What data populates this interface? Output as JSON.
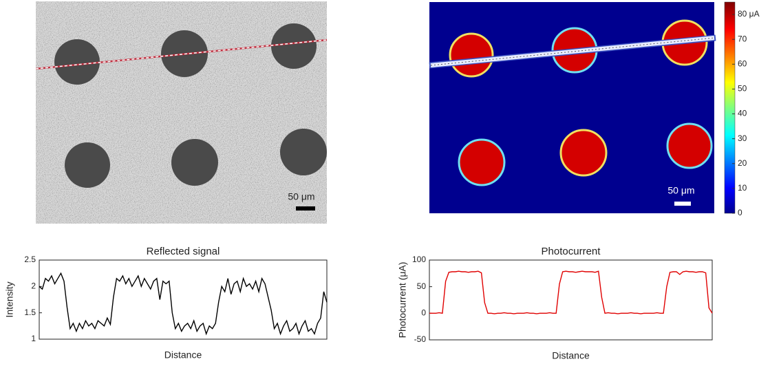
{
  "chart_data": [
    {
      "type": "line",
      "title": "Reflected signal",
      "x_label": "Distance",
      "y_label": "Intensity",
      "color": "#000000",
      "ylim": [
        1,
        2.5
      ],
      "yticks": [
        1,
        1.5,
        2,
        2.5
      ],
      "values": [
        2.0,
        1.95,
        2.15,
        2.1,
        2.2,
        2.05,
        2.15,
        2.25,
        2.1,
        1.6,
        1.2,
        1.3,
        1.15,
        1.3,
        1.2,
        1.35,
        1.25,
        1.3,
        1.2,
        1.35,
        1.3,
        1.25,
        1.4,
        1.28,
        1.8,
        2.15,
        2.1,
        2.2,
        2.05,
        2.15,
        2.0,
        2.1,
        2.2,
        2.0,
        2.15,
        2.05,
        1.95,
        2.1,
        2.15,
        1.75,
        2.1,
        2.05,
        2.1,
        1.5,
        1.2,
        1.3,
        1.15,
        1.25,
        1.3,
        1.2,
        1.35,
        1.15,
        1.25,
        1.3,
        1.1,
        1.25,
        1.2,
        1.3,
        1.7,
        2.0,
        1.9,
        2.15,
        1.85,
        2.05,
        2.1,
        1.9,
        2.15,
        2.0,
        2.05,
        1.95,
        2.1,
        1.9,
        2.15,
        2.05,
        1.8,
        1.55,
        1.2,
        1.3,
        1.1,
        1.25,
        1.35,
        1.15,
        1.2,
        1.3,
        1.1,
        1.25,
        1.35,
        1.15,
        1.2,
        1.1,
        1.3,
        1.4,
        1.9,
        1.7
      ]
    },
    {
      "type": "line",
      "title": "Photocurrent",
      "x_label": "Distance",
      "y_label": "Photocurrent (μA)",
      "color": "#e00000",
      "ylim": [
        -50,
        100
      ],
      "yticks": [
        -50,
        0,
        50,
        100
      ],
      "values": [
        0,
        0,
        0,
        1,
        0,
        60,
        77,
        78,
        78,
        79,
        78,
        78,
        77,
        78,
        78,
        79,
        76,
        20,
        0,
        0,
        -1,
        0,
        0,
        1,
        0,
        0,
        -1,
        0,
        0,
        0,
        1,
        0,
        0,
        -1,
        0,
        0,
        0,
        1,
        0,
        0,
        55,
        78,
        79,
        78,
        78,
        77,
        78,
        79,
        78,
        78,
        78,
        77,
        79,
        30,
        0,
        1,
        0,
        0,
        -1,
        0,
        0,
        0,
        1,
        0,
        0,
        -1,
        0,
        0,
        0,
        0,
        1,
        0,
        0,
        50,
        77,
        78,
        78,
        73,
        78,
        79,
        78,
        78,
        77,
        78,
        78,
        76,
        10,
        0
      ]
    }
  ],
  "micrographs": [
    {
      "scale_bar": "50 μm"
    },
    {
      "scale_bar": "50 μm",
      "colorbar": {
        "lim": [
          0,
          85
        ],
        "ticks": [
          0,
          10,
          20,
          30,
          40,
          50,
          60,
          70,
          {
            "value": 80,
            "label": "80 μA"
          }
        ]
      }
    }
  ]
}
